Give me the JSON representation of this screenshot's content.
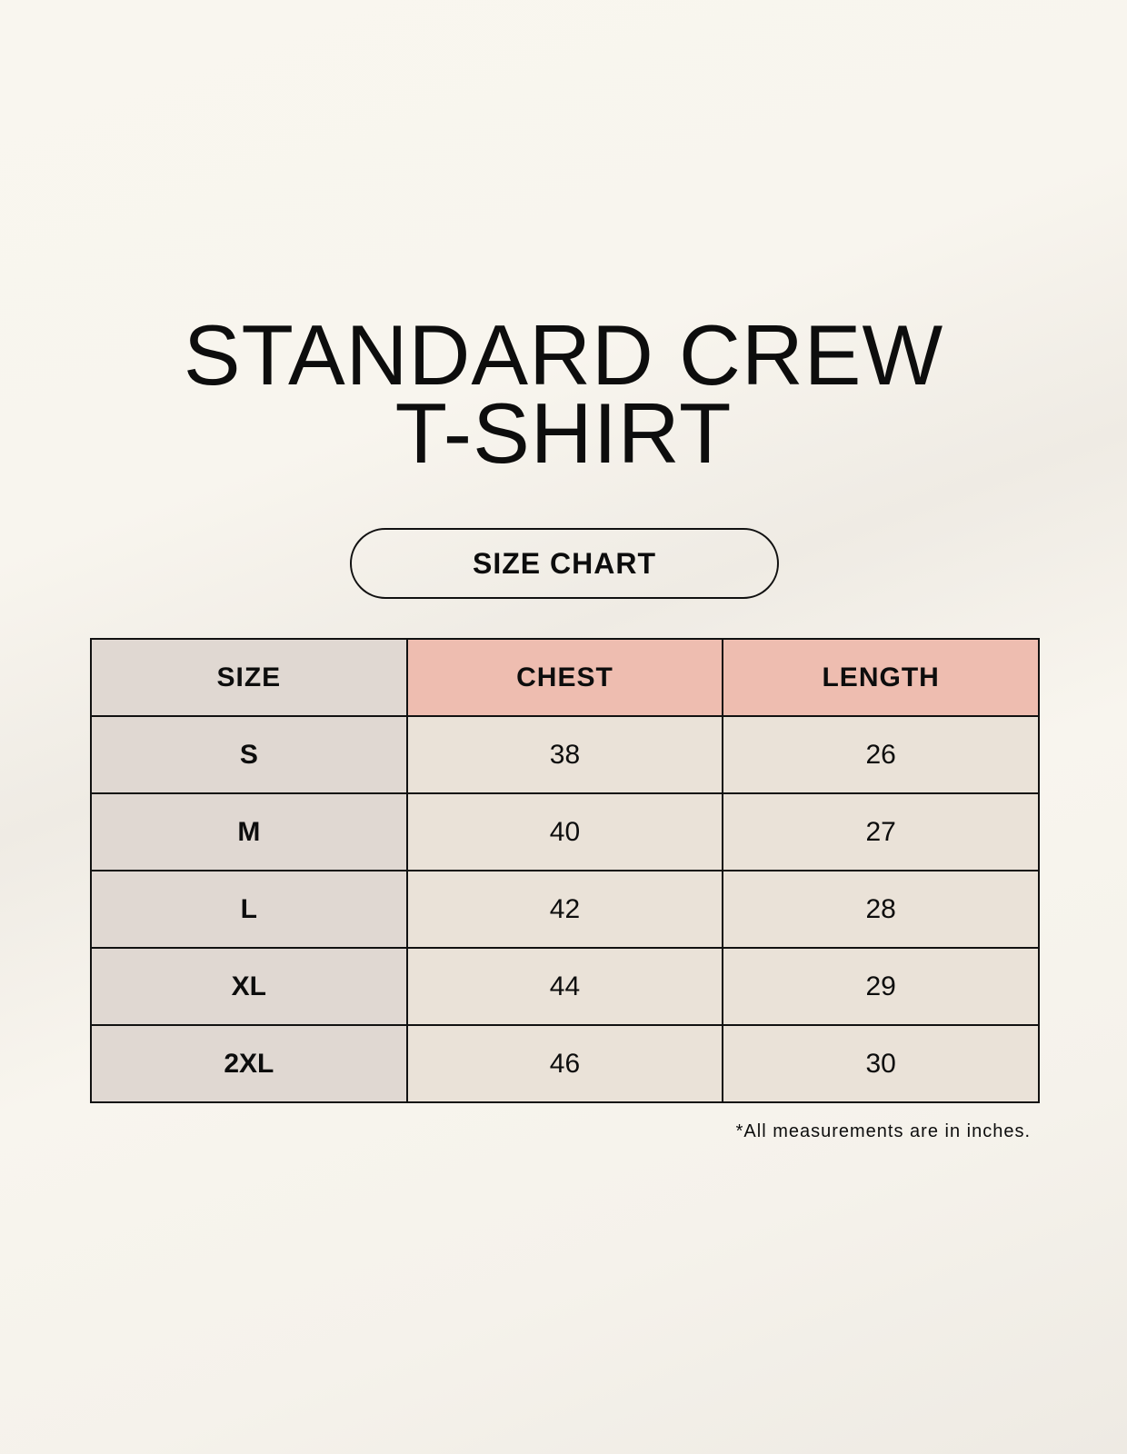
{
  "title": {
    "line1": "STANDARD CREW",
    "line2": "T-SHIRT"
  },
  "subtitle": "SIZE CHART",
  "table": {
    "headers": [
      "SIZE",
      "CHEST",
      "LENGTH"
    ],
    "rows": [
      [
        "S",
        "38",
        "26"
      ],
      [
        "M",
        "40",
        "27"
      ],
      [
        "L",
        "42",
        "28"
      ],
      [
        "XL",
        "44",
        "29"
      ],
      [
        "2XL",
        "46",
        "30"
      ]
    ]
  },
  "footnote": "*All measurements are in inches.",
  "colors": {
    "size_column": "#e0d8d2",
    "header_accent": "#eebdb0",
    "value_cells": "#eae2d8"
  }
}
